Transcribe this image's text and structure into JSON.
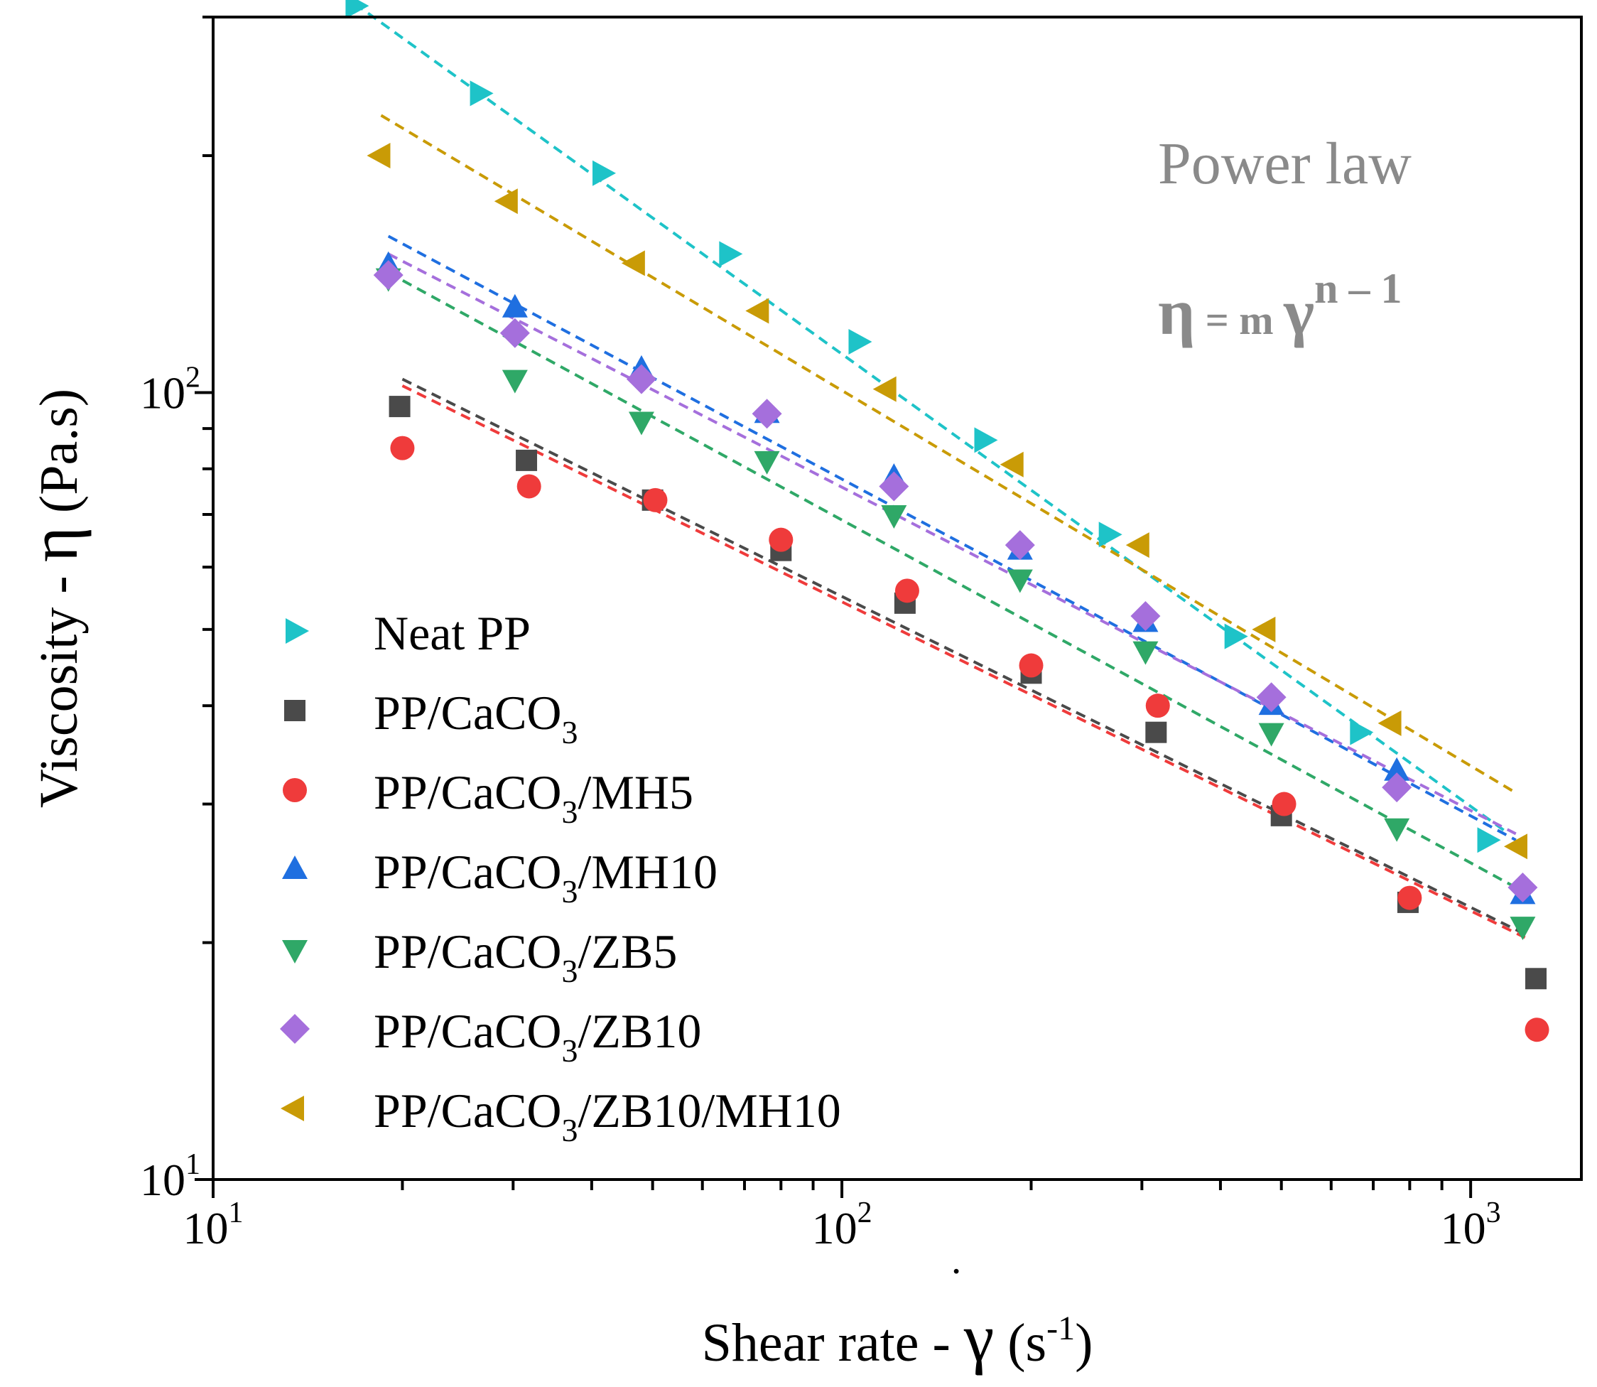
{
  "chart_data": {
    "type": "scatter",
    "x_scale": "log",
    "y_scale": "log",
    "xlim": [
      10,
      1500
    ],
    "ylim": [
      10,
      300
    ],
    "xlabel": {
      "prefix": "Shear rate - ",
      "symbol": "γ",
      "unit_open": " (s",
      "unit_exp": "-1",
      "unit_close": ")"
    },
    "ylabel": {
      "prefix": "Viscosity - ",
      "symbol": "η",
      "unit": " (Pa.s)"
    },
    "x_ticks": [
      {
        "value": 10,
        "base": "10",
        "exp": "1"
      },
      {
        "value": 100,
        "base": "10",
        "exp": "2"
      },
      {
        "value": 1000,
        "base": "10",
        "exp": "3"
      }
    ],
    "y_ticks": [
      {
        "value": 10,
        "base": "10",
        "exp": "1"
      },
      {
        "value": 100,
        "base": "10",
        "exp": "2"
      }
    ],
    "annotation": {
      "title": "Power law",
      "eq_eta": "η",
      "eq_mid": " = m ",
      "eq_gamma": "γ",
      "eq_exp": "n – 1"
    },
    "legend_position": "bottom-left",
    "series": [
      {
        "name": "Neat PP",
        "parts": [
          "Neat PP"
        ],
        "color": "#1ec3c8",
        "marker": "triangle-right",
        "x": [
          16.8,
          26.5,
          41.5,
          66,
          106,
          168,
          265,
          420,
          665,
          1060
        ],
        "y": [
          310,
          240,
          190,
          150,
          116,
          87,
          66,
          49,
          37,
          27
        ],
        "fit": {
          "x": [
            16.8,
            1150
          ],
          "y": [
            312,
            27.5
          ]
        }
      },
      {
        "name": "PP/CaCO3",
        "parts": [
          "PP/CaCO",
          "3",
          ""
        ],
        "color": "#4a4a4a",
        "marker": "square",
        "x": [
          19.8,
          31.5,
          50,
          80,
          126,
          200,
          316,
          500,
          795,
          1270
        ],
        "y": [
          96,
          82,
          73,
          63,
          54,
          44,
          37,
          29,
          22.5,
          18
        ],
        "fit": {
          "x": [
            20,
            1220
          ],
          "y": [
            104,
            20.5
          ]
        }
      },
      {
        "name": "PP/CaCO3/MH5",
        "parts": [
          "PP/CaCO",
          "3",
          "/MH5"
        ],
        "color": "#ef3b3b",
        "marker": "circle",
        "x": [
          20,
          31.8,
          50.5,
          80,
          127,
          200,
          318,
          505,
          800,
          1275
        ],
        "y": [
          85,
          76,
          73,
          65,
          56,
          45,
          40,
          30,
          22.8,
          15.5
        ],
        "fit": {
          "x": [
            20,
            1220
          ],
          "y": [
            102,
            20.3
          ]
        }
      },
      {
        "name": "PP/CaCO3/MH10",
        "parts": [
          "PP/CaCO",
          "3",
          "/MH10"
        ],
        "color": "#1f6fe0",
        "marker": "triangle-up",
        "x": [
          19,
          30.2,
          48,
          76,
          121,
          192,
          304,
          482,
          763,
          1210
        ],
        "y": [
          145,
          128,
          107,
          94,
          78,
          63,
          51,
          40,
          33,
          23
        ],
        "fit": {
          "x": [
            19,
            1180
          ],
          "y": [
            158,
            27
          ]
        }
      },
      {
        "name": "PP/CaCO3/ZB5",
        "parts": [
          "PP/CaCO",
          "3",
          "/ZB5"
        ],
        "color": "#2fa867",
        "marker": "triangle-down",
        "x": [
          19,
          30.2,
          48,
          76,
          121,
          192,
          304,
          482,
          763,
          1210
        ],
        "y": [
          140,
          104,
          92,
          82,
          70,
          58,
          47,
          37,
          28,
          21
        ],
        "fit": {
          "x": [
            19,
            1180
          ],
          "y": [
            142,
            23.5
          ]
        }
      },
      {
        "name": "PP/CaCO3/ZB10",
        "parts": [
          "PP/CaCO",
          "3",
          "/ZB10"
        ],
        "color": "#a56fdc",
        "marker": "diamond",
        "x": [
          19,
          30.2,
          48,
          76,
          121,
          192,
          304,
          482,
          763,
          1210
        ],
        "y": [
          141,
          119,
          104,
          94,
          76,
          64,
          52,
          41,
          31.5,
          23.5
        ],
        "fit": {
          "x": [
            19,
            1180
          ],
          "y": [
            150,
            27.5
          ]
        }
      },
      {
        "name": "PP/CaCO3/ZB10/MH10",
        "parts": [
          "PP/CaCO",
          "3",
          "/ZB10/MH10"
        ],
        "color": "#c99b06",
        "marker": "triangle-left",
        "x": [
          18.5,
          29.5,
          47,
          74,
          118,
          188,
          298,
          473,
          750,
          1190
        ],
        "y": [
          200,
          175,
          146,
          127,
          101,
          81,
          64,
          50,
          38,
          26.5
        ],
        "fit": {
          "x": [
            18.5,
            1180
          ],
          "y": [
            225,
            31
          ]
        }
      }
    ]
  }
}
